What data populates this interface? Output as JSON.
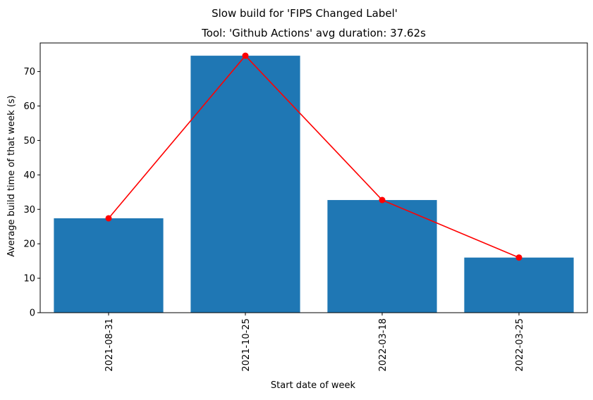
{
  "chart_data": {
    "type": "bar",
    "suptitle": "Slow build for 'FIPS Changed Label'",
    "title": "Tool: 'Github Actions' avg duration: 37.62s",
    "xlabel": "Start date of week",
    "ylabel": "Average build time of that week (s)",
    "categories": [
      "2021-08-31",
      "2021-10-25",
      "2022-03-18",
      "2022-03-25"
    ],
    "values": [
      27.4,
      74.6,
      32.7,
      16.0
    ],
    "overlay_line": {
      "values": [
        27.4,
        74.6,
        32.7,
        16.0
      ],
      "color": "#ff0000",
      "marker": "circle"
    },
    "bar_color": "#1f77b4",
    "ylim": [
      0,
      78.3
    ],
    "yticks": [
      0,
      10,
      20,
      30,
      40,
      50,
      60,
      70
    ],
    "grid": false,
    "legend": "none"
  }
}
